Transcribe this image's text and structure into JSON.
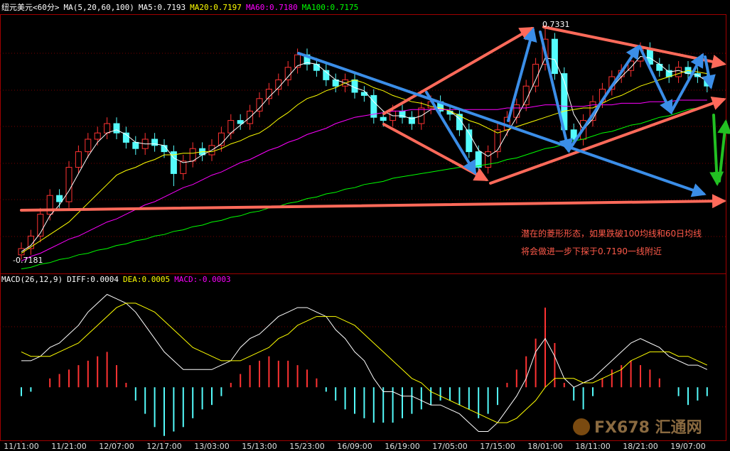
{
  "chart_data": [
    {
      "type": "candlestick",
      "title": "纽元美元<60分>",
      "indicator": "MA(5,20,60,100)",
      "categories": [
        "11/11:00",
        null,
        null,
        null,
        null,
        "11/21:00",
        null,
        null,
        null,
        null,
        "12/07:00",
        null,
        null,
        null,
        null,
        "12/17:00",
        null,
        null,
        null,
        null,
        "13/03:00",
        null,
        null,
        null,
        null,
        "15/13:00",
        null,
        null,
        null,
        null,
        "15/23:00",
        null,
        null,
        null,
        null,
        "16/09:00",
        null,
        null,
        null,
        null,
        "16/19:00",
        null,
        null,
        null,
        null,
        "17/05:00",
        null,
        null,
        null,
        null,
        "17/15:00",
        null,
        null,
        null,
        null,
        "18/01:00",
        null,
        null,
        null,
        null,
        "18/11:00",
        null,
        null,
        null,
        null,
        "18/21:00",
        null,
        null,
        null,
        null,
        "19/07:00",
        null,
        null
      ],
      "open": [
        0.7184,
        0.7188,
        0.7196,
        0.721,
        0.7222,
        0.7218,
        0.724,
        0.725,
        0.7258,
        0.7262,
        0.7268,
        0.7262,
        0.7256,
        0.7252,
        0.7258,
        0.7254,
        0.725,
        0.7236,
        0.7244,
        0.7252,
        0.7248,
        0.7254,
        0.7262,
        0.727,
        0.7268,
        0.7276,
        0.7284,
        0.729,
        0.7296,
        0.7304,
        0.7312,
        0.7306,
        0.7302,
        0.7296,
        0.7292,
        0.7296,
        0.7288,
        0.7286,
        0.7272,
        0.727,
        0.7276,
        0.7272,
        0.7268,
        0.7278,
        0.7282,
        0.7276,
        0.7274,
        0.7264,
        0.725,
        0.724,
        0.725,
        0.7264,
        0.7272,
        0.728,
        0.7292,
        0.7306,
        0.7322,
        0.73,
        0.7264,
        0.7258,
        0.727,
        0.7282,
        0.729,
        0.7298,
        0.7302,
        0.7308,
        0.7316,
        0.7306,
        0.7302,
        0.7298,
        0.7304,
        0.73,
        0.7298
      ],
      "high": [
        0.7192,
        0.72,
        0.7214,
        0.7226,
        0.7226,
        0.7244,
        0.7254,
        0.7262,
        0.7266,
        0.7272,
        0.7272,
        0.7266,
        0.726,
        0.7262,
        0.7262,
        0.7258,
        0.7254,
        0.7248,
        0.7256,
        0.7256,
        0.7258,
        0.7266,
        0.7274,
        0.7274,
        0.728,
        0.7288,
        0.7294,
        0.73,
        0.7308,
        0.7316,
        0.7316,
        0.731,
        0.7306,
        0.73,
        0.73,
        0.73,
        0.7292,
        0.729,
        0.7276,
        0.728,
        0.728,
        0.7276,
        0.7282,
        0.7286,
        0.7286,
        0.728,
        0.7278,
        0.7268,
        0.7254,
        0.7254,
        0.7268,
        0.7276,
        0.7284,
        0.7296,
        0.731,
        0.7331,
        0.7326,
        0.7304,
        0.7268,
        0.7274,
        0.7286,
        0.7294,
        0.7302,
        0.7306,
        0.7312,
        0.732,
        0.732,
        0.731,
        0.7306,
        0.7308,
        0.7308,
        0.7304,
        0.7302
      ],
      "low": [
        0.7181,
        0.7184,
        0.7192,
        0.7206,
        0.7214,
        0.7214,
        0.7236,
        0.7246,
        0.7254,
        0.7258,
        0.7258,
        0.7252,
        0.7248,
        0.7248,
        0.725,
        0.7246,
        0.7228,
        0.7232,
        0.724,
        0.7244,
        0.7244,
        0.725,
        0.7258,
        0.7264,
        0.7264,
        0.7272,
        0.728,
        0.7286,
        0.7292,
        0.73,
        0.7302,
        0.7298,
        0.7292,
        0.7288,
        0.7288,
        0.7284,
        0.7282,
        0.7268,
        0.7266,
        0.7266,
        0.7268,
        0.7264,
        0.7264,
        0.7274,
        0.7272,
        0.727,
        0.726,
        0.7246,
        0.7236,
        0.7236,
        0.7246,
        0.726,
        0.7268,
        0.7276,
        0.7288,
        0.7302,
        0.7296,
        0.726,
        0.7254,
        0.7254,
        0.7266,
        0.7278,
        0.7286,
        0.7294,
        0.7298,
        0.7304,
        0.7302,
        0.7298,
        0.7294,
        0.7294,
        0.7296,
        0.7294,
        0.7288
      ],
      "close": [
        0.7188,
        0.7196,
        0.721,
        0.7222,
        0.7218,
        0.724,
        0.725,
        0.7258,
        0.7262,
        0.7268,
        0.7262,
        0.7256,
        0.7252,
        0.7258,
        0.7254,
        0.725,
        0.7236,
        0.7244,
        0.7252,
        0.7248,
        0.7254,
        0.7262,
        0.727,
        0.7268,
        0.7276,
        0.7284,
        0.729,
        0.7296,
        0.7304,
        0.7312,
        0.7306,
        0.7302,
        0.7296,
        0.7292,
        0.7296,
        0.7288,
        0.7286,
        0.7272,
        0.727,
        0.7276,
        0.7272,
        0.7268,
        0.7278,
        0.7282,
        0.7276,
        0.7274,
        0.7264,
        0.725,
        0.724,
        0.725,
        0.7264,
        0.7272,
        0.728,
        0.7292,
        0.7306,
        0.7322,
        0.73,
        0.7264,
        0.7258,
        0.727,
        0.7282,
        0.729,
        0.7298,
        0.7302,
        0.7308,
        0.7316,
        0.7306,
        0.7302,
        0.7298,
        0.7304,
        0.73,
        0.7298,
        0.7292
      ],
      "up_color": "#ff3232",
      "down_color": "#54fcfc",
      "series": [
        {
          "name": "MA5:0.7193",
          "color": "#ffffff",
          "values": [
            0.7186,
            0.719,
            0.7198,
            0.7209,
            0.7216,
            0.7225,
            0.7236,
            0.7247,
            0.7256,
            0.7262,
            0.7264,
            0.7261,
            0.7256,
            0.7255,
            0.7255,
            0.7254,
            0.7246,
            0.7243,
            0.7244,
            0.7248,
            0.7251,
            0.7255,
            0.7262,
            0.7267,
            0.7272,
            0.7278,
            0.7285,
            0.7291,
            0.7298,
            0.7305,
            0.7307,
            0.7306,
            0.7301,
            0.7296,
            0.7294,
            0.7291,
            0.7289,
            0.7282,
            0.7276,
            0.7273,
            0.7273,
            0.7271,
            0.7273,
            0.7277,
            0.7278,
            0.7276,
            0.7271,
            0.7262,
            0.7251,
            0.7247,
            0.7251,
            0.7262,
            0.7272,
            0.7283,
            0.7296,
            0.731,
            0.7309,
            0.7295,
            0.7274,
            0.7264,
            0.7271,
            0.7282,
            0.7291,
            0.7298,
            0.7304,
            0.7311,
            0.731,
            0.7306,
            0.7301,
            0.7302,
            0.73,
            0.7299,
            0.7295
          ]
        },
        {
          "name": "MA20:0.7197",
          "color": "#ffff00",
          "values": [
            0.7185,
            0.7189,
            0.7193,
            0.7197,
            0.7201,
            0.7205,
            0.7211,
            0.7217,
            0.7223,
            0.7229,
            0.7235,
            0.7238,
            0.724,
            0.7243,
            0.7245,
            0.7248,
            0.7248,
            0.7249,
            0.7249,
            0.725,
            0.725,
            0.7252,
            0.7255,
            0.7257,
            0.726,
            0.7262,
            0.7266,
            0.7271,
            0.7275,
            0.728,
            0.7284,
            0.7286,
            0.7289,
            0.7291,
            0.7294,
            0.7296,
            0.7294,
            0.7291,
            0.7289,
            0.7286,
            0.7284,
            0.7282,
            0.7281,
            0.7279,
            0.7278,
            0.7276,
            0.7273,
            0.727,
            0.7268,
            0.7265,
            0.7262,
            0.7264,
            0.7266,
            0.7268,
            0.727,
            0.7272,
            0.7274,
            0.7276,
            0.7277,
            0.7278,
            0.7278,
            0.7281,
            0.7284,
            0.7286,
            0.7289,
            0.7292,
            0.7294,
            0.7296,
            0.7298,
            0.73,
            0.7302,
            0.7301,
            0.73
          ]
        },
        {
          "name": "MA60:0.7180",
          "color": "#ff00ff",
          "values": [
            0.718,
            0.7183,
            0.7185,
            0.7188,
            0.7191,
            0.7194,
            0.7196,
            0.7199,
            0.7202,
            0.7205,
            0.7207,
            0.721,
            0.7213,
            0.7216,
            0.7218,
            0.7221,
            0.7224,
            0.7227,
            0.7229,
            0.7232,
            0.7235,
            0.7237,
            0.724,
            0.7243,
            0.7245,
            0.7248,
            0.7251,
            0.7253,
            0.7256,
            0.7258,
            0.7261,
            0.7263,
            0.7265,
            0.7268,
            0.727,
            0.7272,
            0.7273,
            0.7274,
            0.7275,
            0.7276,
            0.7276,
            0.7277,
            0.7277,
            0.7277,
            0.7277,
            0.7277,
            0.7277,
            0.7277,
            0.7277,
            0.7277,
            0.7277,
            0.7278,
            0.7278,
            0.7278,
            0.7279,
            0.728,
            0.728,
            0.7279,
            0.7279,
            0.7279,
            0.728,
            0.728,
            0.728,
            0.7281,
            0.7281,
            0.7281,
            0.7282,
            0.7282,
            0.7282,
            0.7283,
            0.7283,
            0.7283,
            0.7283
          ]
        },
        {
          "name": "MA100:0.7175",
          "color": "#00ff00",
          "values": [
            0.7175,
            0.7176,
            0.7178,
            0.7179,
            0.7181,
            0.7182,
            0.7184,
            0.7185,
            0.7187,
            0.7188,
            0.719,
            0.7191,
            0.7193,
            0.7194,
            0.7196,
            0.7197,
            0.7199,
            0.72,
            0.7202,
            0.7203,
            0.7205,
            0.7206,
            0.7208,
            0.7209,
            0.7211,
            0.7212,
            0.7214,
            0.7215,
            0.7217,
            0.7218,
            0.722,
            0.7221,
            0.7223,
            0.7224,
            0.7226,
            0.7227,
            0.7229,
            0.723,
            0.7231,
            0.7233,
            0.7234,
            0.7235,
            0.7236,
            0.7237,
            0.7238,
            0.7239,
            0.724,
            0.724,
            0.7241,
            0.7242,
            0.7243,
            0.7245,
            0.7246,
            0.7248,
            0.725,
            0.7252,
            0.7253,
            0.7255,
            0.7257,
            0.7258,
            0.726,
            0.7262,
            0.7263,
            0.7265,
            0.7267,
            0.7268,
            0.727,
            0.7272,
            0.7273,
            0.7275,
            0.7277,
            0.7278,
            0.728
          ]
        }
      ],
      "ylim": [
        0.7173,
        0.7338
      ],
      "high_label": "0.7331",
      "low_label": "-0.7181",
      "annotations": [
        "潜在的菱形形态，如果跌破100均线和60日均线",
        "将会做进一步下探于0.7190一线附近"
      ],
      "watermark": "FX678 汇通网"
    },
    {
      "type": "macd",
      "indicator": "MACD(26,12,9)",
      "ylim": [
        -0.0012,
        0.0023
      ],
      "series": [
        {
          "name": "DIFF:0.0004",
          "color": "#ffffff",
          "values": [
            0.0006,
            0.0006,
            0.0007,
            0.0009,
            0.001,
            0.0012,
            0.0014,
            0.0017,
            0.0019,
            0.0021,
            0.002,
            0.0019,
            0.0017,
            0.0014,
            0.0011,
            0.0008,
            0.0006,
            0.0004,
            0.0004,
            0.0004,
            0.0004,
            0.0005,
            0.0006,
            0.0009,
            0.0011,
            0.0012,
            0.0014,
            0.0016,
            0.0017,
            0.0018,
            0.0018,
            0.0017,
            0.0016,
            0.0013,
            0.0011,
            0.0008,
            0.0006,
            0.0002,
            -0.0001,
            -0.0001,
            -0.0002,
            -0.0002,
            -0.0003,
            -0.0004,
            -0.0004,
            -0.0005,
            -0.0006,
            -0.0008,
            -0.001,
            -0.001,
            -0.0008,
            -0.0005,
            -0.0002,
            0.0002,
            0.0008,
            0.0011,
            0.0007,
            0.0002,
            0,
            0.0001,
            0.0002,
            0.0004,
            0.0006,
            0.0008,
            0.001,
            0.0011,
            0.001,
            0.0009,
            0.0007,
            0.0006,
            0.0005,
            0.0005,
            0.0004
          ]
        },
        {
          "name": "DEA:0.0005",
          "color": "#ffff00",
          "values": [
            0.0008,
            0.0007,
            0.0007,
            0.0007,
            0.0008,
            0.0009,
            0.001,
            0.0012,
            0.0014,
            0.0016,
            0.0018,
            0.0019,
            0.0019,
            0.0018,
            0.0017,
            0.0015,
            0.0013,
            0.0011,
            0.0009,
            0.0008,
            0.0007,
            0.0006,
            0.0006,
            0.0006,
            0.0007,
            0.0008,
            0.0009,
            0.0011,
            0.0012,
            0.0014,
            0.0015,
            0.0016,
            0.0016,
            0.0016,
            0.0015,
            0.0014,
            0.0012,
            0.001,
            0.0008,
            0.0006,
            0.0004,
            0.0002,
            0.0001,
            -0.0001,
            -0.0002,
            -0.0003,
            -0.0004,
            -0.0005,
            -0.0006,
            -0.0007,
            -0.0008,
            -0.0008,
            -0.0007,
            -0.0005,
            -0.0003,
            0,
            0.0002,
            0.0002,
            0.0002,
            0.0001,
            0.0001,
            0.0002,
            0.0003,
            0.0004,
            0.0006,
            0.0007,
            0.0008,
            0.0008,
            0.0008,
            0.0007,
            0.0007,
            0.0006,
            0.0005
          ]
        },
        {
          "name": "MACD:-0.0003",
          "color": "#ff00ff",
          "histogram": true,
          "up_color": "#ff3232",
          "down_color": "#54fcfc",
          "values": [
            -0.0002,
            -0.0001,
            0,
            0.0002,
            0.0003,
            0.0004,
            0.0005,
            0.0006,
            0.0007,
            0.0008,
            0.0005,
            0.0001,
            -0.0003,
            -0.0006,
            -0.0009,
            -0.0011,
            -0.001,
            -0.0009,
            -0.0007,
            -0.0005,
            -0.0004,
            -0.0002,
            0.0001,
            0.0003,
            0.0005,
            0.0006,
            0.0007,
            0.0006,
            0.0006,
            0.0005,
            0.0004,
            0.0002,
            -0.0001,
            -0.0003,
            -0.0005,
            -0.0006,
            -0.0007,
            -0.0008,
            -0.0008,
            -0.0008,
            -0.0007,
            -0.0006,
            -0.0005,
            -0.0004,
            -0.0003,
            -0.0003,
            -0.0004,
            -0.0005,
            -0.0007,
            -0.0006,
            -0.0004,
            0.0001,
            0.0004,
            0.0007,
            0.0011,
            0.0018,
            0.001,
            0.0001,
            -0.0003,
            -0.0005,
            -0.0002,
            0.0002,
            0.0004,
            0.0005,
            0.0006,
            0.0005,
            0.0004,
            0.0002,
            0,
            -0.0002,
            -0.0004,
            -0.0003,
            -0.0002
          ]
        }
      ]
    }
  ]
}
